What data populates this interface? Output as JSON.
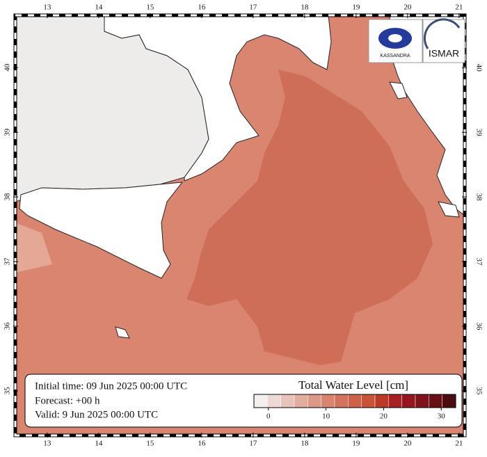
{
  "map": {
    "xlim": [
      12.38,
      21.11
    ],
    "ylim": [
      34.31,
      40.81
    ],
    "lon_ticks": [
      13,
      14,
      15,
      16,
      17,
      18,
      19,
      20,
      21
    ],
    "lat_ticks": [
      35,
      36,
      37,
      38,
      39,
      40
    ]
  },
  "logos": [
    "KASSANDRA",
    "ISMAR"
  ],
  "info": {
    "initial": "Initial time: 09 Jun 2025 00:00 UTC",
    "forecast": "Forecast: +00 h",
    "valid": "Valid:  9 Jun 2025 00:00 UTC"
  },
  "colorbar": {
    "title": "Total Water Level [cm]",
    "range": [
      -2.5,
      32.5
    ],
    "ticks": [
      0,
      10,
      20,
      30
    ],
    "colors": [
      "#f2efee",
      "#ecd9d4",
      "#e6c4ba",
      "#e1ada0",
      "#dc9886",
      "#d8846f",
      "#d2735b",
      "#cd6249",
      "#c85237",
      "#bb3a26",
      "#a82022",
      "#93161f",
      "#7e111b",
      "#681016",
      "#4d0c10"
    ]
  }
}
